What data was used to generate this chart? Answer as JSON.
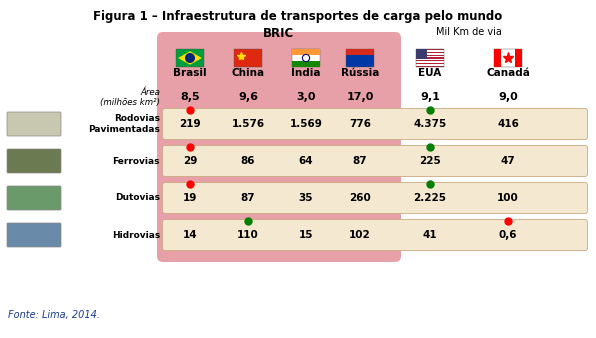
{
  "title": "Figura 1 – Infraestrutura de transportes de carga pelo mundo",
  "bric_label": "BRIC",
  "mil_km_label": "Mil Km de via",
  "columns": [
    "Brasil",
    "China",
    "Índia",
    "Rússia",
    "EUA",
    "Canadá"
  ],
  "area_label": "Área\n(milhões km²)",
  "area_values": [
    "8,5",
    "9,6",
    "3,0",
    "17,0",
    "9,1",
    "9,0"
  ],
  "rows": [
    {
      "label": "Rodovias\nPavimentadas",
      "values": [
        "219",
        "1.576",
        "1.569",
        "776",
        "4.375",
        "416"
      ],
      "dot_col": 0,
      "dot_color": "red",
      "dot2_col": 4,
      "dot2_color": "green"
    },
    {
      "label": "Ferrovias",
      "values": [
        "29",
        "86",
        "64",
        "87",
        "225",
        "47"
      ],
      "dot_col": 0,
      "dot_color": "red",
      "dot2_col": 4,
      "dot2_color": "green"
    },
    {
      "label": "Dutovias",
      "values": [
        "19",
        "87",
        "35",
        "260",
        "2.225",
        "100"
      ],
      "dot_col": 0,
      "dot_color": "red",
      "dot2_col": 4,
      "dot2_color": "green"
    },
    {
      "label": "Hidrovias",
      "values": [
        "14",
        "110",
        "15",
        "102",
        "41",
        "0,6"
      ],
      "dot_col": 1,
      "dot_color": "green",
      "dot2_col": 5,
      "dot2_color": "red"
    }
  ],
  "fonte": "Fonte: Lima, 2014.",
  "bric_bg": "#e8a0a8",
  "row_bg": "#f5e8d0",
  "fig_bg": "#ffffff"
}
